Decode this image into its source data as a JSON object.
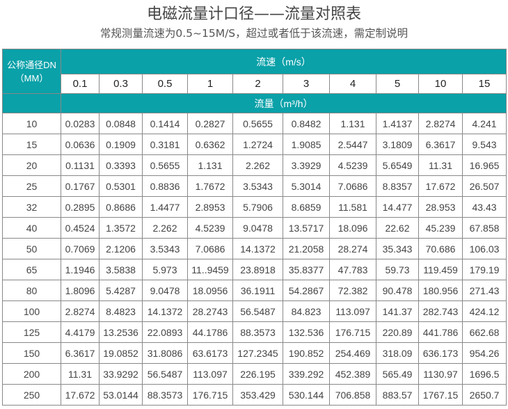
{
  "title": "电磁流量计口径——流量对照表",
  "subtitle": "常规测量流速为0.5~15M/S，超过或者低于该流速，需定制说明",
  "table": {
    "dn_header_line1": "公称通径DN",
    "dn_header_line2": "（MM）",
    "speed_header": "流速（m/s）",
    "flow_header": "流量（m³/h）",
    "speeds": [
      "0.1",
      "0.3",
      "0.5",
      "1",
      "2",
      "3",
      "4",
      "5",
      "10",
      "15"
    ],
    "rows": [
      [
        "10",
        "0.0283",
        "0.0848",
        "0.1414",
        "0.2827",
        "0.5655",
        "0.8482",
        "1.131",
        "1.4137",
        "2.8274",
        "4.241"
      ],
      [
        "15",
        "0.0636",
        "0.1909",
        "0.3181",
        "0.6362",
        "1.2724",
        "1.9085",
        "2.5447",
        "3.1809",
        "6.3617",
        "9.543"
      ],
      [
        "20",
        "0.1131",
        "0.3393",
        "0.5655",
        "1.131",
        "2.262",
        "3.3929",
        "4.5239",
        "5.6549",
        "11.31",
        "16.965"
      ],
      [
        "25",
        "0.1767",
        "0.5301",
        "0.8836",
        "1.7672",
        "3.5343",
        "5.3014",
        "7.0686",
        "8.8357",
        "17.672",
        "26.507"
      ],
      [
        "32",
        "0.2895",
        "0.8686",
        "1.4477",
        "2.8953",
        "5.7906",
        "8.6859",
        "11.581",
        "14.477",
        "28.953",
        "43.43"
      ],
      [
        "40",
        "0.4524",
        "1.3572",
        "2.262",
        "4.5239",
        "9.0478",
        "13.5717",
        "18.096",
        "22.62",
        "45.239",
        "67.858"
      ],
      [
        "50",
        "0.7069",
        "2.1206",
        "3.5343",
        "7.0686",
        "14.1372",
        "21.2058",
        "28.274",
        "35.343",
        "70.686",
        "106.03"
      ],
      [
        "65",
        "1.1946",
        "3.5838",
        "5.973",
        "11..9459",
        "23.8918",
        "35.8377",
        "47.783",
        "59.73",
        "119.459",
        "179.19"
      ],
      [
        "80",
        "1.8096",
        "5.4287",
        "9.0478",
        "18.0956",
        "36.1911",
        "54.2867",
        "72.382",
        "90.478",
        "180.956",
        "271.43"
      ],
      [
        "100",
        "2.8274",
        "8.4823",
        "14.1372",
        "28.2743",
        "56.5487",
        "84.823",
        "113.097",
        "141.37",
        "282.743",
        "424.12"
      ],
      [
        "125",
        "4.4179",
        "13.2536",
        "22.0893",
        "44.1786",
        "88.3573",
        "132.536",
        "176.715",
        "220.89",
        "441.786",
        "662.68"
      ],
      [
        "150",
        "6.3617",
        "19.0852",
        "31.8086",
        "63.6173",
        "127.2345",
        "190.852",
        "254.469",
        "318.09",
        "636.173",
        "954.26"
      ],
      [
        "200",
        "11.31",
        "33.9292",
        "56.5487",
        "113.097",
        "226.195",
        "339.292",
        "452.389",
        "565.49",
        "1130.97",
        "1696.5"
      ],
      [
        "250",
        "17.672",
        "53.0144",
        "88.3573",
        "176.715",
        "353.429",
        "530.144",
        "706.858",
        "883.57",
        "1767.15",
        "2650.7"
      ]
    ]
  },
  "colors": {
    "header_bg": "#0aa1a9",
    "header_text": "#ffffff",
    "border": "#888888"
  }
}
